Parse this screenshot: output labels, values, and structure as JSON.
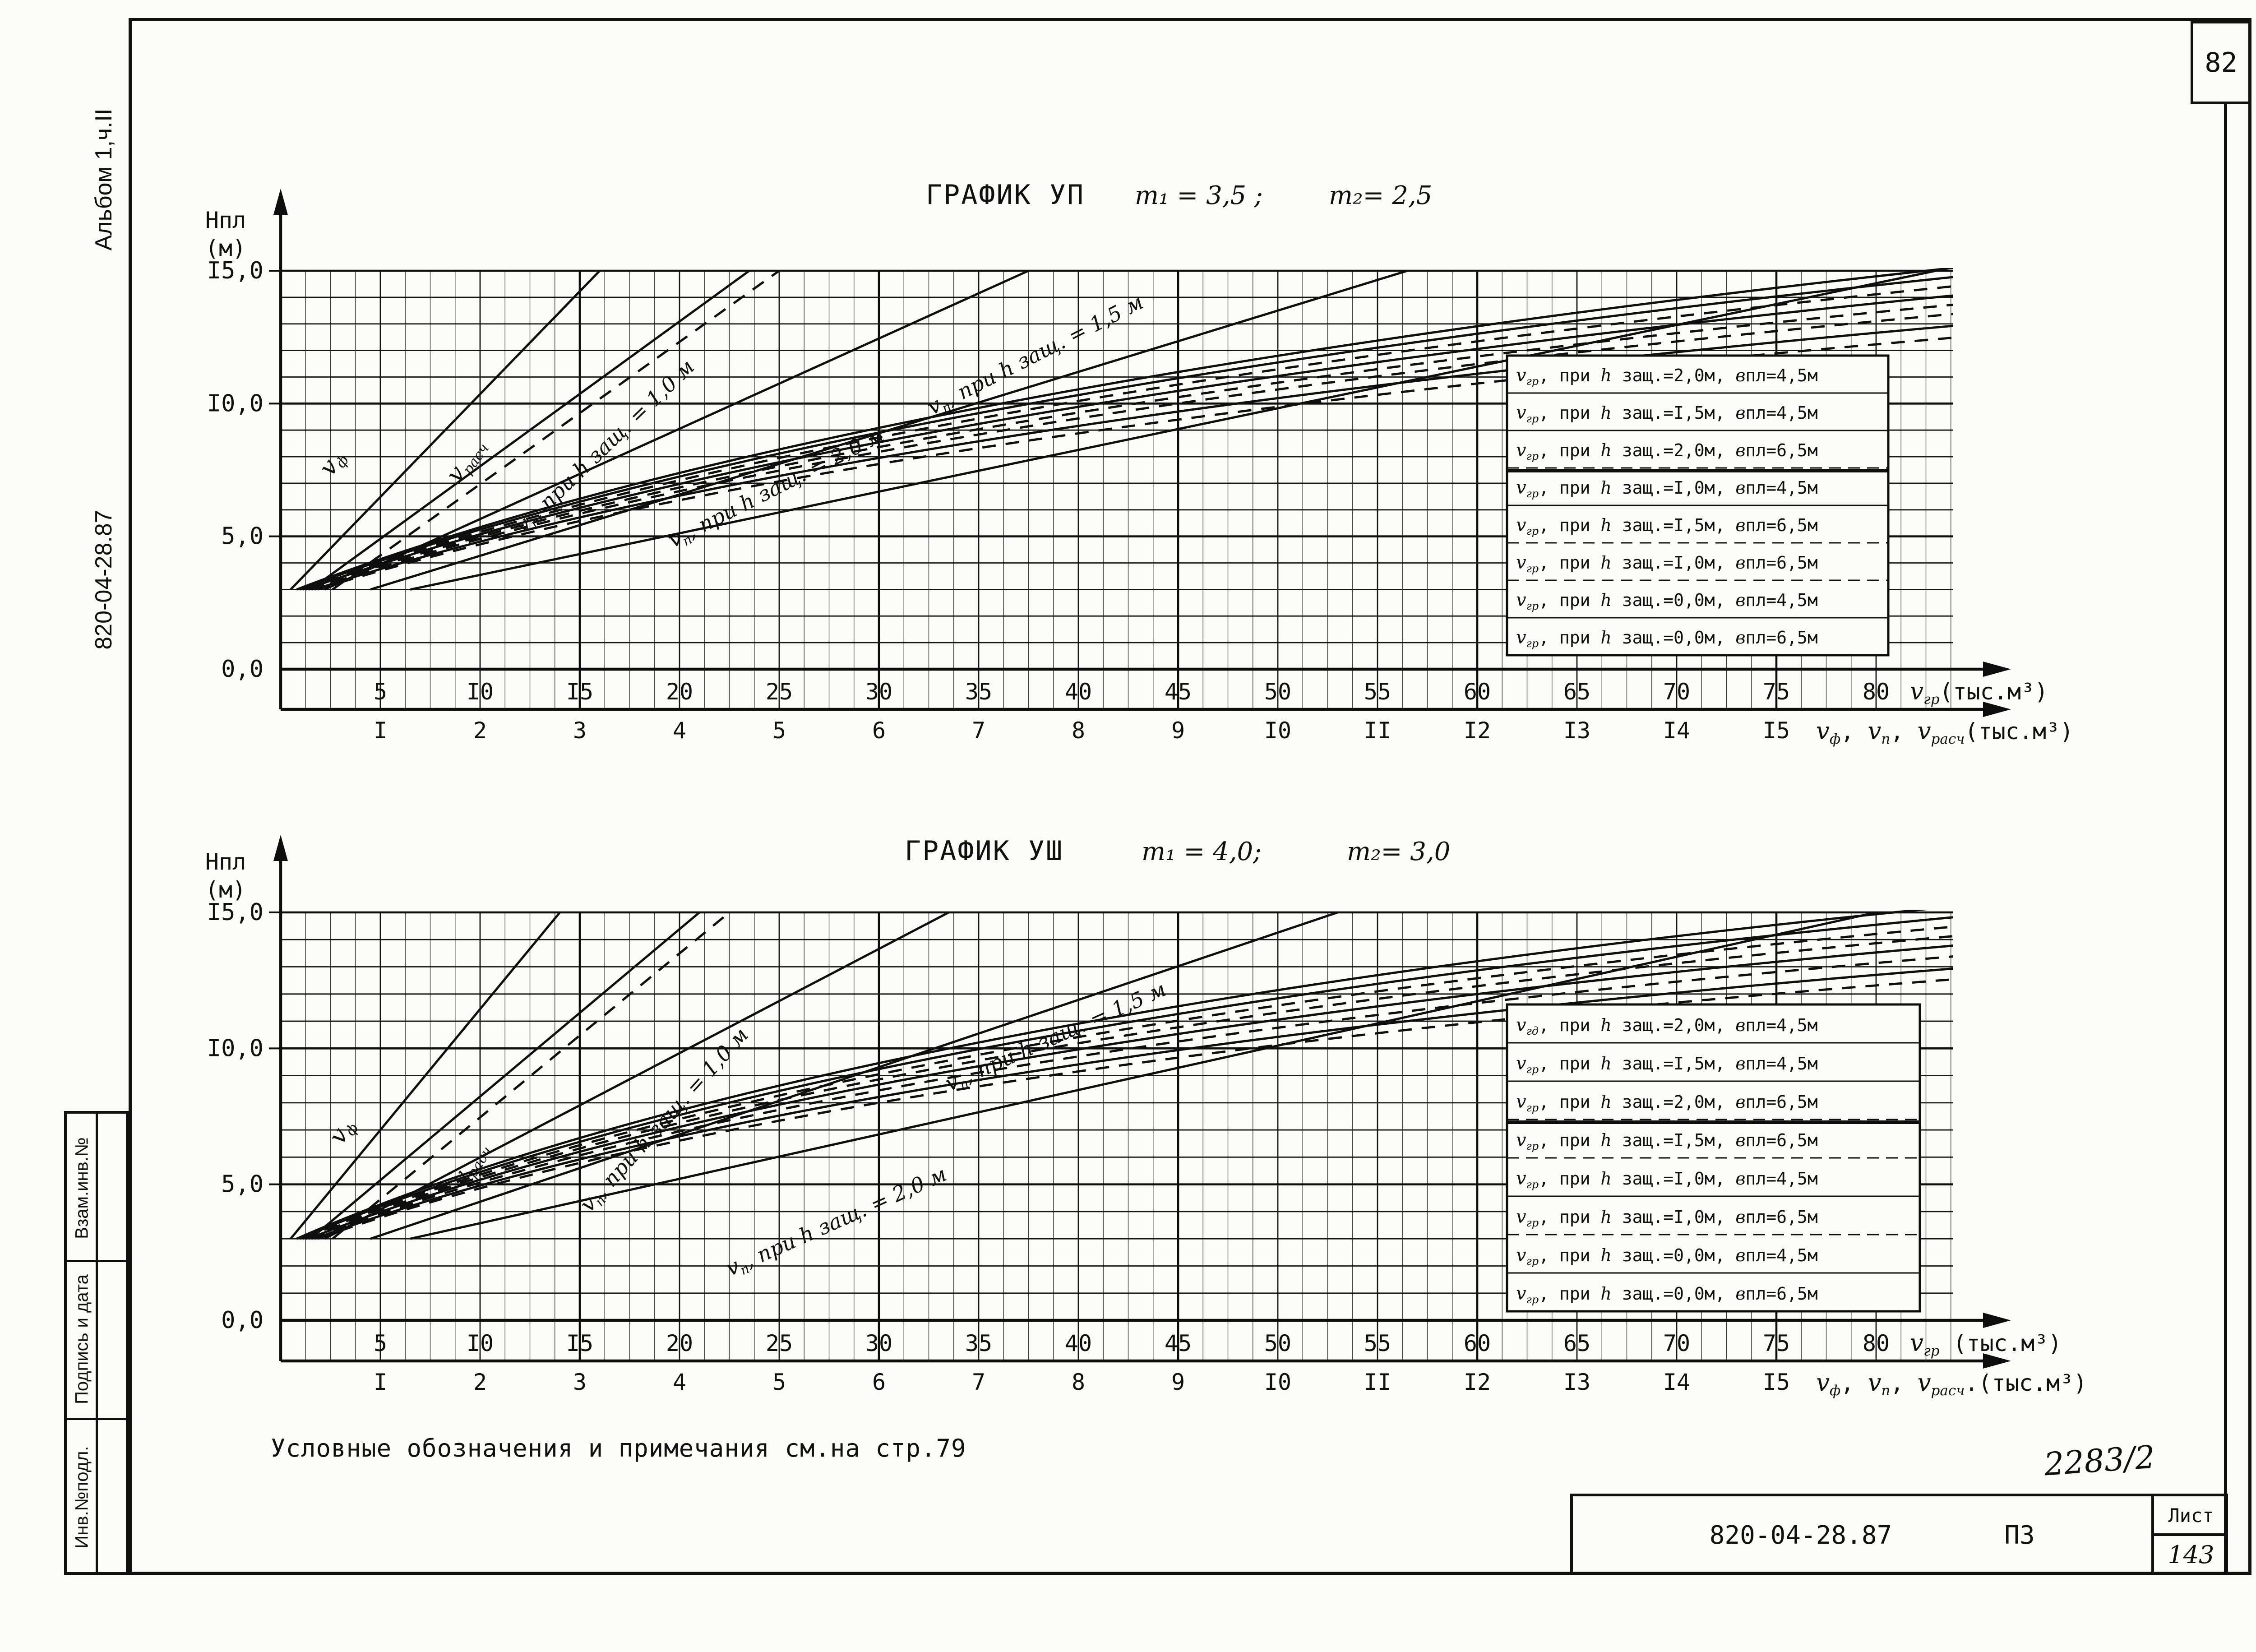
{
  "page": {
    "sheet_number": "82",
    "note": "Условные обозначения и примечания см.на стр.79",
    "handwritten_mark": "2283/2"
  },
  "left_margin": {
    "album": "Альбом 1,ч.II",
    "doc_number": "820-04-28.87",
    "stamp_cells": [
      "Взам.инв.№",
      "Подпись и дата",
      "Инв.№подл."
    ]
  },
  "title_block": {
    "doc_number": "820-04-28.87",
    "doc_type": "ПЗ",
    "sheet_label": "Лист",
    "sheet_number": "143"
  },
  "chart_data": [
    {
      "type": "line",
      "title": "ГРАФИК УП",
      "m1": "m₁ = 3,5 ;",
      "m2": "m₂= 2,5",
      "ylabel_line1": "Нпл",
      "ylabel_line2": "(м)",
      "ylim": [
        0,
        15
      ],
      "xlim": [
        0,
        85
      ],
      "grid": {
        "x_fine_step": 1.25,
        "x_major_step": 5,
        "y_step": 1,
        "y_major_step": 5
      },
      "y_ticks": [
        {
          "v": 15,
          "label": "I5,0"
        },
        {
          "v": 10,
          "label": "I0,0"
        },
        {
          "v": 5,
          "label": "5,0"
        },
        {
          "v": 0,
          "label": "0,0"
        }
      ],
      "x_upper_ticks": [
        {
          "v": 5,
          "label": "5"
        },
        {
          "v": 10,
          "label": "I0"
        },
        {
          "v": 15,
          "label": "I5"
        },
        {
          "v": 20,
          "label": "20"
        },
        {
          "v": 25,
          "label": "25"
        },
        {
          "v": 30,
          "label": "30"
        },
        {
          "v": 35,
          "label": "35"
        },
        {
          "v": 40,
          "label": "40"
        },
        {
          "v": 45,
          "label": "45"
        },
        {
          "v": 50,
          "label": "50"
        },
        {
          "v": 55,
          "label": "55"
        },
        {
          "v": 60,
          "label": "60"
        },
        {
          "v": 65,
          "label": "65"
        },
        {
          "v": 70,
          "label": "70"
        },
        {
          "v": 75,
          "label": "75"
        },
        {
          "v": 80,
          "label": "80"
        }
      ],
      "x_upper_axis_label": "Vгр(тыс.м³)",
      "x_lower_ticks": [
        {
          "v": 5,
          "label": "I"
        },
        {
          "v": 10,
          "label": "2"
        },
        {
          "v": 15,
          "label": "3"
        },
        {
          "v": 20,
          "label": "4"
        },
        {
          "v": 25,
          "label": "5"
        },
        {
          "v": 30,
          "label": "6"
        },
        {
          "v": 35,
          "label": "7"
        },
        {
          "v": 40,
          "label": "8"
        },
        {
          "v": 45,
          "label": "9"
        },
        {
          "v": 50,
          "label": "I0"
        },
        {
          "v": 55,
          "label": "II"
        },
        {
          "v": 60,
          "label": "I2"
        },
        {
          "v": 65,
          "label": "I3"
        },
        {
          "v": 70,
          "label": "I4"
        },
        {
          "v": 75,
          "label": "I5"
        }
      ],
      "x_lower_axis_label": "Vф, Vп, Vрасч(тыс.м³)",
      "curves": [
        {
          "name": "Vф",
          "style": "solid",
          "kind": "line",
          "points": [
            [
              0.5,
              3
            ],
            [
              16,
              15
            ]
          ]
        },
        {
          "name": "Vрасч",
          "style": "solid",
          "kind": "line",
          "points": [
            [
              1.5,
              3
            ],
            [
              23.5,
              15
            ]
          ]
        },
        {
          "name": "Vрасч (пунктир)",
          "style": "dashed",
          "kind": "line",
          "points": [
            [
              2.6,
              3
            ],
            [
              25,
              15
            ]
          ]
        },
        {
          "name": "Vп, при h защ.=1,0м",
          "style": "solid",
          "kind": "line",
          "points": [
            [
              2.2,
              3
            ],
            [
              37.5,
              15
            ]
          ]
        },
        {
          "name": "Vп, при h защ.=1,5м",
          "style": "solid",
          "kind": "line",
          "points": [
            [
              4.5,
              3
            ],
            [
              56.5,
              15
            ]
          ]
        },
        {
          "name": "Vп, при h защ.=2,0м",
          "style": "solid",
          "kind": "line",
          "points": [
            [
              6.5,
              3
            ],
            [
              83,
              15
            ]
          ]
        },
        {
          "name": "Vгр, при h защ.=2,0м, впл=4,5м",
          "style": "solid",
          "kind": "curve",
          "points": [
            [
              0.8,
              3
            ],
            [
              27,
              10.56
            ],
            [
              85,
              15.2
            ]
          ]
        },
        {
          "name": "Vгр, при h защ.=1,5м, впл=4,5м",
          "style": "solid",
          "kind": "curve",
          "points": [
            [
              0.95,
              3
            ],
            [
              27,
              10.35
            ],
            [
              85,
              14.85
            ]
          ]
        },
        {
          "name": "Vгр, при h защ.=2,0м, впл=6,5м",
          "style": "dashed",
          "kind": "curve",
          "points": [
            [
              1.1,
              3
            ],
            [
              27,
              10.13
            ],
            [
              85,
              14.5
            ]
          ]
        },
        {
          "name": "Vгр, при h защ.=1,0м, впл=4,5м",
          "style": "solid",
          "kind": "curve",
          "points": [
            [
              1.25,
              3
            ],
            [
              27,
              9.91
            ],
            [
              85,
              14.15
            ]
          ]
        },
        {
          "name": "Vгр, при h защ.=1,5м, впл=6,5м",
          "style": "dashed",
          "kind": "curve",
          "points": [
            [
              1.4,
              3
            ],
            [
              27,
              9.7
            ],
            [
              85,
              13.8
            ]
          ]
        },
        {
          "name": "Vгр, при h защ.=1,0м, впл=6,5м",
          "style": "dashed",
          "kind": "curve",
          "points": [
            [
              1.55,
              3
            ],
            [
              27,
              9.48
            ],
            [
              85,
              13.45
            ]
          ]
        },
        {
          "name": "Vгр, при h защ.=0,0м, впл=4,5м",
          "style": "solid",
          "kind": "curve",
          "points": [
            [
              1.7,
              3
            ],
            [
              27,
              9.2
            ],
            [
              85,
              13.0
            ]
          ]
        },
        {
          "name": "Vгр, при h защ.=0,0м, впл=6,5м",
          "style": "dashed",
          "kind": "curve",
          "points": [
            [
              1.85,
              3
            ],
            [
              27,
              8.92
            ],
            [
              85,
              12.55
            ]
          ]
        }
      ],
      "curve_labels": [
        {
          "text": "Vф",
          "x": 2.9,
          "y": 7.6,
          "angle": -55,
          "size": 50
        },
        {
          "text": "Vрасч",
          "x": 9.6,
          "y": 7.7,
          "angle": -55,
          "size": 50
        },
        {
          "text": "Vп, при h защ. = 1,0 м",
          "x": 16.5,
          "y": 8.2,
          "angle": -44,
          "size": 46
        },
        {
          "text": "Vп, при h защ. = 1,5 м",
          "x": 38,
          "y": 11.6,
          "angle": -27,
          "size": 46
        },
        {
          "text": "Vп, при h защ. = 2,0 м",
          "x": 25,
          "y": 6.6,
          "angle": -27,
          "size": 46
        }
      ],
      "legend": {
        "split_after": 3,
        "rows": [
          {
            "text": "Vгр, при h защ.=2,0м, впл=4,5м",
            "style": "solid"
          },
          {
            "text": "Vгр, при h защ.=I,5м, впл=4,5м",
            "style": "solid"
          },
          {
            "text": "Vгр, при h защ.=2,0м, впл=6,5м",
            "style": "dashed"
          },
          {
            "text": "Vгр, при h защ.=I,0м, впл=4,5м",
            "style": "solid"
          },
          {
            "text": "Vгр, при h защ.=I,5м, впл=6,5м",
            "style": "dashed"
          },
          {
            "text": "Vгр, при h защ.=I,0м, впл=6,5м",
            "style": "dashed"
          },
          {
            "text": "Vгр, при h защ.=0,0м, впл=4,5м",
            "style": "solid"
          },
          {
            "text": "Vгр, при h защ.=0,0м, впл=6,5м",
            "style": "dashed"
          }
        ]
      }
    },
    {
      "type": "line",
      "title": "ГРАФИК УШ",
      "m1": "m₁ = 4,0;",
      "m2": "m₂= 3,0",
      "ylabel_line1": "Нпл",
      "ylabel_line2": "(м)",
      "ylim": [
        0,
        15
      ],
      "xlim": [
        0,
        85
      ],
      "grid": {
        "x_fine_step": 1.25,
        "x_major_step": 5,
        "y_step": 1,
        "y_major_step": 5
      },
      "y_ticks": [
        {
          "v": 15,
          "label": "I5,0"
        },
        {
          "v": 10,
          "label": "I0,0"
        },
        {
          "v": 5,
          "label": "5,0"
        },
        {
          "v": 0,
          "label": "0,0"
        }
      ],
      "x_upper_ticks": [
        {
          "v": 5,
          "label": "5"
        },
        {
          "v": 10,
          "label": "I0"
        },
        {
          "v": 15,
          "label": "I5"
        },
        {
          "v": 20,
          "label": "20"
        },
        {
          "v": 25,
          "label": "25"
        },
        {
          "v": 30,
          "label": "30"
        },
        {
          "v": 35,
          "label": "35"
        },
        {
          "v": 40,
          "label": "40"
        },
        {
          "v": 45,
          "label": "45"
        },
        {
          "v": 50,
          "label": "50"
        },
        {
          "v": 55,
          "label": "55"
        },
        {
          "v": 60,
          "label": "60"
        },
        {
          "v": 65,
          "label": "65"
        },
        {
          "v": 70,
          "label": "70"
        },
        {
          "v": 75,
          "label": "75"
        },
        {
          "v": 80,
          "label": "80"
        }
      ],
      "x_upper_axis_label": "Vгр (тыс.м³)",
      "x_lower_ticks": [
        {
          "v": 5,
          "label": "I"
        },
        {
          "v": 10,
          "label": "2"
        },
        {
          "v": 15,
          "label": "3"
        },
        {
          "v": 20,
          "label": "4"
        },
        {
          "v": 25,
          "label": "5"
        },
        {
          "v": 30,
          "label": "6"
        },
        {
          "v": 35,
          "label": "7"
        },
        {
          "v": 40,
          "label": "8"
        },
        {
          "v": 45,
          "label": "9"
        },
        {
          "v": 50,
          "label": "I0"
        },
        {
          "v": 55,
          "label": "II"
        },
        {
          "v": 60,
          "label": "I2"
        },
        {
          "v": 65,
          "label": "I3"
        },
        {
          "v": 70,
          "label": "I4"
        },
        {
          "v": 75,
          "label": "I5"
        }
      ],
      "x_lower_axis_label": "Vф, Vп, Vрасч.(тыс.м³)",
      "curves": [
        {
          "name": "Vф",
          "style": "solid",
          "kind": "line",
          "points": [
            [
              0.5,
              3
            ],
            [
              14,
              15
            ]
          ]
        },
        {
          "name": "Vрасч",
          "style": "solid",
          "kind": "line",
          "points": [
            [
              1.5,
              3
            ],
            [
              21,
              15
            ]
          ]
        },
        {
          "name": "Vрасч (пунктир)",
          "style": "dashed",
          "kind": "line",
          "points": [
            [
              2.6,
              3
            ],
            [
              22.5,
              15
            ]
          ]
        },
        {
          "name": "Vп, при h защ.=1,0м",
          "style": "solid",
          "kind": "line",
          "points": [
            [
              2.2,
              3
            ],
            [
              33.5,
              15
            ]
          ]
        },
        {
          "name": "Vп, при h защ.=1,5м",
          "style": "solid",
          "kind": "line",
          "points": [
            [
              4.5,
              3
            ],
            [
              53,
              15
            ]
          ]
        },
        {
          "name": "Vп, при h защ.=2,0м",
          "style": "solid",
          "kind": "line",
          "points": [
            [
              6.5,
              3
            ],
            [
              80,
              15
            ]
          ]
        },
        {
          "name": "Vгд, при h защ.=2,0м, впл=4,5м",
          "style": "solid",
          "kind": "curve",
          "points": [
            [
              0.8,
              3
            ],
            [
              26,
              11.12
            ],
            [
              85,
              15.3
            ]
          ]
        },
        {
          "name": "Vгр, при h защ.=1,5м, впл=4,5м",
          "style": "solid",
          "kind": "curve",
          "points": [
            [
              0.95,
              3
            ],
            [
              26,
              10.85
            ],
            [
              85,
              14.9
            ]
          ]
        },
        {
          "name": "Vгр, при h защ.=2,0м, впл=6,5м",
          "style": "dashed",
          "kind": "curve",
          "points": [
            [
              1.1,
              3
            ],
            [
              26,
              10.62
            ],
            [
              85,
              14.55
            ]
          ]
        },
        {
          "name": "Vгр, при h защ.=1,5м, впл=6,5м",
          "style": "dashed",
          "kind": "curve",
          "points": [
            [
              1.25,
              3
            ],
            [
              26,
              10.39
            ],
            [
              85,
              14.2
            ]
          ]
        },
        {
          "name": "Vгр, при h защ.=1,0м, впл=4,5м",
          "style": "solid",
          "kind": "curve",
          "points": [
            [
              1.4,
              3
            ],
            [
              26,
              10.16
            ],
            [
              85,
              13.85
            ]
          ]
        },
        {
          "name": "Vгр, при h защ.=1,0м, впл=6,5м",
          "style": "dashed",
          "kind": "curve",
          "points": [
            [
              1.55,
              3
            ],
            [
              26,
              9.9
            ],
            [
              85,
              13.45
            ]
          ]
        },
        {
          "name": "Vгр, при h защ.=0,0м, впл=4,5м",
          "style": "solid",
          "kind": "curve",
          "points": [
            [
              1.7,
              3
            ],
            [
              26,
              9.6
            ],
            [
              85,
              13.0
            ]
          ]
        },
        {
          "name": "Vгр, при h защ.=0,0м, впл=6,5м",
          "style": "dashed",
          "kind": "curve",
          "points": [
            [
              1.85,
              3
            ],
            [
              26,
              9.34
            ],
            [
              85,
              12.6
            ]
          ]
        }
      ],
      "curve_labels": [
        {
          "text": "Vф",
          "x": 3.4,
          "y": 6.8,
          "angle": -58,
          "size": 50
        },
        {
          "text": "Vрасч",
          "x": 9.8,
          "y": 5.6,
          "angle": -58,
          "size": 50
        },
        {
          "text": "Vп, при h защ. = 1,0 м",
          "x": 19.5,
          "y": 7.2,
          "angle": -48,
          "size": 46
        },
        {
          "text": "Vп, при h защ. = 1,5 м",
          "x": 39,
          "y": 10.2,
          "angle": -24,
          "size": 46
        },
        {
          "text": "Vп, при h защ. = 2,0 м",
          "x": 28,
          "y": 3.4,
          "angle": -24,
          "size": 46
        }
      ],
      "legend": {
        "split_after": 3,
        "rows": [
          {
            "text": "Vгд, при h защ.=2,0м, впл=4,5м",
            "style": "solid"
          },
          {
            "text": "Vгр, при h защ.=I,5м, впл=4,5м",
            "style": "solid"
          },
          {
            "text": "Vгр, при h защ.=2,0м, впл=6,5м",
            "style": "dashed"
          },
          {
            "text": "Vгр, при h защ.=I,5м, впл=6,5м",
            "style": "dashed"
          },
          {
            "text": "Vгр, при h защ.=I,0м, впл=4,5м",
            "style": "solid"
          },
          {
            "text": "Vгр, при h защ.=I,0м, впл=6,5м",
            "style": "dashed"
          },
          {
            "text": "Vгр, при h защ.=0,0м, впл=4,5м",
            "style": "solid"
          },
          {
            "text": "Vгр, при h защ.=0,0м, впл=6,5м",
            "style": "dashed"
          }
        ]
      }
    }
  ]
}
